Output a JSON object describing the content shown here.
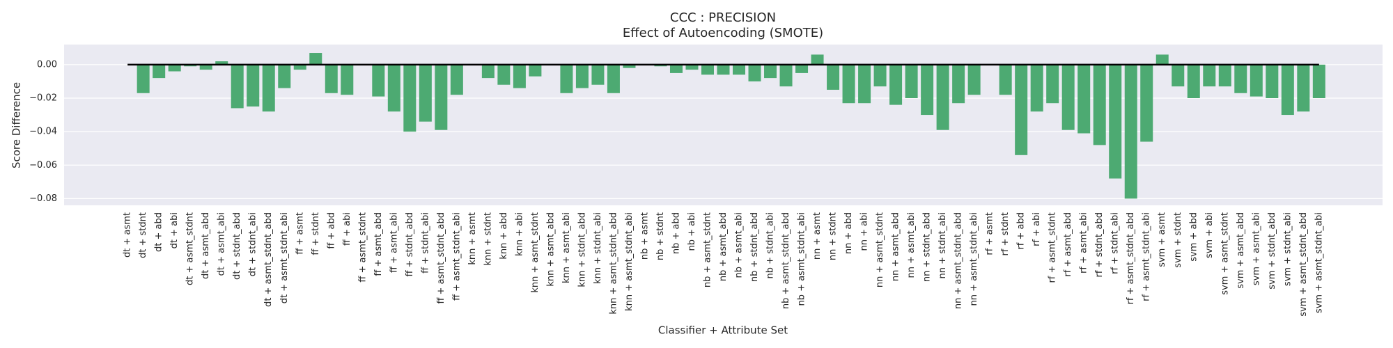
{
  "chart_data": {
    "type": "bar",
    "title": "CCC : PRECISION",
    "subtitle": "Effect of Autoencoding (SMOTE)",
    "x_label": "Classifier + Attribute Set",
    "y_label": "Score Difference",
    "color": "#4daa72",
    "grid": true,
    "reference_line": 0,
    "ylim": [
      -0.084,
      0.012
    ],
    "yticks": [
      {
        "value": 0,
        "label": "0.00"
      },
      {
        "value": -0.02,
        "label": "−0.02"
      },
      {
        "value": -0.04,
        "label": "−0.04"
      },
      {
        "value": -0.06,
        "label": "−0.06"
      },
      {
        "value": -0.08,
        "label": "−0.08"
      }
    ],
    "categories": [
      "dt + asmt",
      "dt + stdnt",
      "dt + abd",
      "dt + abi",
      "dt + asmt_stdnt",
      "dt + asmt_abd",
      "dt + asmt_abi",
      "dt + stdnt_abd",
      "dt + stdnt_abi",
      "dt + asmt_stdnt_abd",
      "dt + asmt_stdnt_abi",
      "ff + asmt",
      "ff + stdnt",
      "ff + abd",
      "ff + abi",
      "ff + asmt_stdnt",
      "ff + asmt_abd",
      "ff + asmt_abi",
      "ff + stdnt_abd",
      "ff + stdnt_abi",
      "ff + asmt_stdnt_abd",
      "ff + asmt_stdnt_abi",
      "knn + asmt",
      "knn + stdnt",
      "knn + abd",
      "knn + abi",
      "knn + asmt_stdnt",
      "knn + asmt_abd",
      "knn + asmt_abi",
      "knn + stdnt_abd",
      "knn + stdnt_abi",
      "knn + asmt_stdnt_abd",
      "knn + asmt_stdnt_abi",
      "nb + asmt",
      "nb + stdnt",
      "nb + abd",
      "nb + abi",
      "nb + asmt_stdnt",
      "nb + asmt_abd",
      "nb + asmt_abi",
      "nb + stdnt_abd",
      "nb + stdnt_abi",
      "nb + asmt_stdnt_abd",
      "nb + asmt_stdnt_abi",
      "nn + asmt",
      "nn + stdnt",
      "nn + abd",
      "nn + abi",
      "nn + asmt_stdnt",
      "nn + asmt_abd",
      "nn + asmt_abi",
      "nn + stdnt_abd",
      "nn + stdnt_abi",
      "nn + asmt_stdnt_abd",
      "nn + asmt_stdnt_abi",
      "rf + asmt",
      "rf + stdnt",
      "rf + abd",
      "rf + abi",
      "rf + asmt_stdnt",
      "rf + asmt_abd",
      "rf + asmt_abi",
      "rf + stdnt_abd",
      "rf + stdnt_abi",
      "rf + asmt_stdnt_abd",
      "rf + asmt_stdnt_abi",
      "svm + asmt",
      "svm + stdnt",
      "svm + abd",
      "svm + abi",
      "svm + asmt_stdnt",
      "svm + asmt_abd",
      "svm + asmt_abi",
      "svm + stdnt_abd",
      "svm + stdnt_abi",
      "svm + asmt_stdnt_abd",
      "svm + asmt_stdnt_abi"
    ],
    "values": [
      0.0,
      -0.017,
      -0.008,
      -0.004,
      -0.001,
      -0.003,
      0.002,
      -0.026,
      -0.025,
      -0.028,
      -0.014,
      -0.003,
      0.007,
      -0.017,
      -0.018,
      0.0,
      -0.019,
      -0.028,
      -0.04,
      -0.034,
      -0.039,
      -0.018,
      0.0,
      -0.008,
      -0.012,
      -0.014,
      -0.007,
      0.0,
      -0.017,
      -0.014,
      -0.012,
      -0.017,
      -0.002,
      0.0,
      -0.001,
      -0.005,
      -0.003,
      -0.006,
      -0.006,
      -0.006,
      -0.01,
      -0.008,
      -0.013,
      -0.005,
      0.006,
      -0.015,
      -0.023,
      -0.023,
      -0.013,
      -0.024,
      -0.02,
      -0.03,
      -0.039,
      -0.023,
      -0.018,
      0.0,
      -0.018,
      -0.054,
      -0.028,
      -0.023,
      -0.039,
      -0.041,
      -0.048,
      -0.068,
      -0.08,
      -0.046,
      0.006,
      -0.013,
      -0.02,
      -0.013,
      -0.013,
      -0.017,
      -0.019,
      -0.02,
      -0.03,
      -0.028,
      -0.02
    ]
  }
}
